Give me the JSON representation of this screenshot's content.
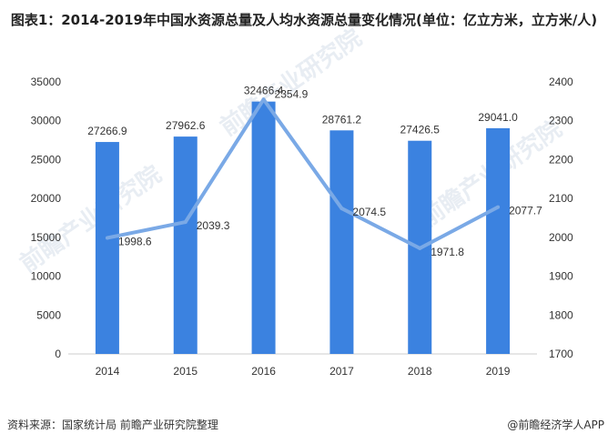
{
  "title": "图表1：2014-2019年中国水资源总量及人均水资源总量变化情况(单位：亿立方米，立方米/人)",
  "source": "资料来源：国家统计局 前瞻产业研究院整理",
  "credit": "@前瞻经济学人APP",
  "watermark": "前瞻产业研究院",
  "chart_data": {
    "type": "bar+line",
    "categories": [
      "2014",
      "2015",
      "2016",
      "2017",
      "2018",
      "2019"
    ],
    "series": [
      {
        "type": "bar",
        "axis": "left",
        "values": [
          27266.9,
          27962.6,
          32466.4,
          28761.2,
          27426.5,
          29041.0
        ],
        "labels": [
          "27266.9",
          "27962.6",
          "32466.4",
          "28761.2",
          "27426.5",
          "29041.0"
        ],
        "color": "#3b82e0"
      },
      {
        "type": "line",
        "axis": "right",
        "values": [
          1998.6,
          2039.3,
          2354.9,
          2074.5,
          1971.8,
          2077.7
        ],
        "labels": [
          "1998.6",
          "2039.3",
          "2354.9",
          "2074.5",
          "1971.8",
          "2077.7"
        ],
        "color": "#7aa9e6"
      }
    ],
    "left_axis": {
      "min": 0,
      "max": 35000,
      "ticks": [
        "0",
        "5000",
        "10000",
        "15000",
        "20000",
        "25000",
        "30000",
        "35000"
      ]
    },
    "right_axis": {
      "min": 1700,
      "max": 2400,
      "ticks": [
        "1700",
        "1800",
        "1900",
        "2000",
        "2100",
        "2200",
        "2300",
        "2400"
      ]
    },
    "grid": false,
    "legend": "none"
  }
}
